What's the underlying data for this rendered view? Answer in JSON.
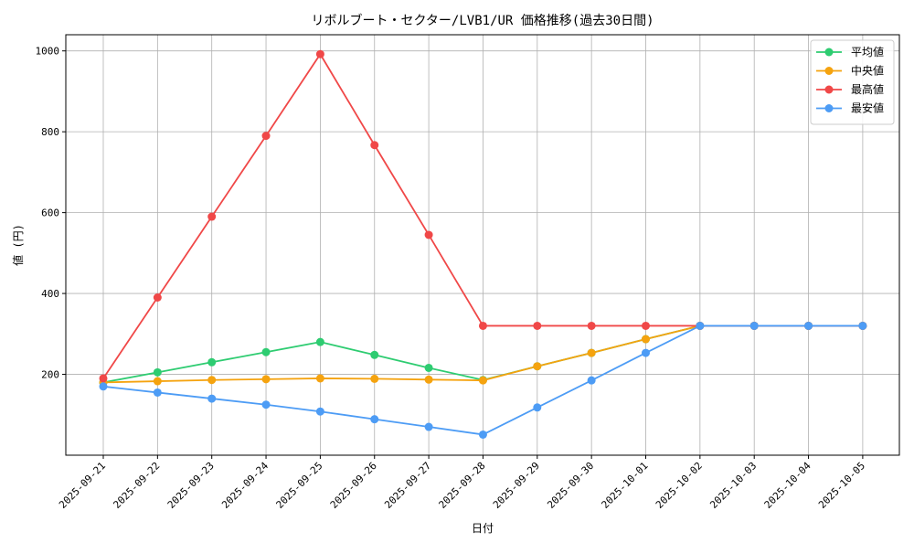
{
  "chart_data": {
    "type": "line",
    "title": "リボルブート・セクター/LVB1/UR 価格推移(過去30日間)",
    "xlabel": "日付",
    "ylabel": "値 (円)",
    "ylim": [
      0,
      1040
    ],
    "yticks": [
      200,
      400,
      600,
      800,
      1000
    ],
    "grid": true,
    "legend_position": "top-right",
    "categories": [
      "2025-09-21",
      "2025-09-22",
      "2025-09-23",
      "2025-09-24",
      "2025-09-25",
      "2025-09-26",
      "2025-09-27",
      "2025-09-28",
      "2025-09-29",
      "2025-09-30",
      "2025-10-01",
      "2025-10-02",
      "2025-10-03",
      "2025-10-04",
      "2025-10-05"
    ],
    "series": [
      {
        "name": "平均値",
        "color": "#2ecc71",
        "values": [
          180,
          205,
          230,
          255,
          280,
          248,
          216,
          186,
          220,
          253,
          287,
          320,
          320,
          320,
          320
        ]
      },
      {
        "name": "中央値",
        "color": "#f5a30f",
        "values": [
          180,
          183,
          186,
          188,
          190,
          189,
          187,
          185,
          220,
          253,
          287,
          320,
          320,
          320,
          320
        ]
      },
      {
        "name": "最高値",
        "color": "#f04848",
        "values": [
          190,
          390,
          590,
          790,
          992,
          767,
          545,
          320,
          320,
          320,
          320,
          320,
          320,
          320,
          320
        ]
      },
      {
        "name": "最安値",
        "color": "#4d9cf5",
        "values": [
          170,
          155,
          140,
          125,
          108,
          89,
          70,
          51,
          118,
          185,
          253,
          320,
          320,
          320,
          320
        ]
      }
    ]
  }
}
